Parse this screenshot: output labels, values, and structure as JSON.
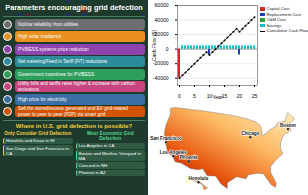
{
  "infographic": {
    "title": "Parameters encouraging grid defection",
    "factors": [
      {
        "text": "No/low reliability from utilities",
        "color": "#6d6e71"
      },
      {
        "text": "High solar irradiance",
        "color": "#e9901f"
      },
      {
        "text": "PV/BESS systems price reduction",
        "color": "#8e44ad"
      },
      {
        "text": "Net metering/Feed in Tariff (FiT) reductions",
        "color": "#2c8c99"
      },
      {
        "text": "Government incentives for PV/BESS",
        "color": "#2e9e5b"
      },
      {
        "text": "Utility bills and tariffs raise higher & increase with carbon emissions",
        "color": "#c8457f"
      },
      {
        "text": "High price for electricity",
        "color": "#3a6ea5"
      },
      {
        "text": "Sell the stored/excess generated and EV grid-related power to peer to peer (P2P) via smart grid",
        "color": "#d35400"
      }
    ],
    "question": "Where in U.S. grid defection is possible?",
    "columns": [
      {
        "heading": "Only Consider Grid Defection",
        "color": "#f4d03f",
        "items": [
          "Honolulu and Kauai in HI",
          "San Diego and San Francisco in CA"
        ]
      },
      {
        "heading": "Most Economic Grid Defection",
        "color": "#58d68d",
        "items": [
          "Los Angeles in CA",
          "Boston and Marthas Vineyard in MA",
          "Concord in NH",
          "Phoenix in AZ"
        ]
      }
    ]
  },
  "chart_data": {
    "type": "bar",
    "stacked": true,
    "x_label": "Year",
    "y_label": "Cash Flow ($)",
    "x": [
      0,
      1,
      2,
      3,
      4,
      5,
      6,
      7,
      8,
      9,
      10,
      11,
      12,
      13,
      14,
      15,
      16,
      17,
      18,
      19,
      20,
      21,
      22,
      23,
      24,
      25
    ],
    "xticks": [
      0,
      5,
      10,
      15,
      20,
      25
    ],
    "ylim": [
      -50000,
      60000
    ],
    "yticks": [
      -40000,
      -20000,
      0,
      20000,
      40000,
      60000
    ],
    "grid": true,
    "legend": "right",
    "series": [
      {
        "name": "Capital Cost",
        "color": "#d62728",
        "values": [
          -40000,
          0,
          0,
          0,
          0,
          0,
          0,
          0,
          0,
          0,
          0,
          0,
          0,
          0,
          0,
          0,
          0,
          0,
          0,
          0,
          0,
          0,
          0,
          0,
          0,
          0
        ]
      },
      {
        "name": "Replacement Cost",
        "color": "#1f3fb4",
        "values": [
          0,
          0,
          0,
          0,
          0,
          0,
          0,
          0,
          0,
          0,
          -8000,
          0,
          0,
          0,
          0,
          0,
          0,
          0,
          0,
          0,
          -8000,
          0,
          0,
          0,
          0,
          0
        ]
      },
      {
        "name": "O&M Cost",
        "color": "#2ca02c",
        "values": [
          0,
          -500,
          -500,
          -500,
          -500,
          -500,
          -500,
          -500,
          -500,
          -500,
          -500,
          -500,
          -500,
          -500,
          -500,
          -500,
          -500,
          -500,
          -500,
          -500,
          -500,
          -500,
          -500,
          -500,
          -500,
          -500
        ]
      },
      {
        "name": "Savings",
        "color": "#17becf",
        "values": [
          0,
          4500,
          4500,
          4500,
          4500,
          4500,
          4500,
          4500,
          4500,
          4500,
          4500,
          4500,
          4500,
          4500,
          4500,
          4500,
          4500,
          4500,
          4500,
          4500,
          4500,
          4500,
          4500,
          4500,
          4500,
          4500
        ]
      },
      {
        "name": "Cumulative Cash Flow",
        "color": "#000000",
        "type": "line",
        "marker": "circle",
        "values": [
          -40000,
          -36000,
          -32000,
          -28000,
          -24000,
          -20000,
          -16000,
          -12000,
          -8000,
          -4000,
          -8000,
          -4000,
          0,
          4000,
          8000,
          12000,
          16000,
          20000,
          24000,
          28000,
          24000,
          28000,
          32000,
          36000,
          40000,
          44000
        ]
      }
    ]
  },
  "map": {
    "cities": [
      {
        "name": "Honolulu",
        "lon": -157.86,
        "lat": 21.31
      },
      {
        "name": "San Francisco",
        "lon": -122.42,
        "lat": 37.77
      },
      {
        "name": "Los Angeles",
        "lon": -118.24,
        "lat": 34.05
      },
      {
        "name": "Phoenix",
        "lon": -112.07,
        "lat": 33.45
      },
      {
        "name": "Chicago",
        "lon": -87.63,
        "lat": 41.88
      },
      {
        "name": "Boston",
        "lon": -71.06,
        "lat": 42.36
      }
    ]
  }
}
